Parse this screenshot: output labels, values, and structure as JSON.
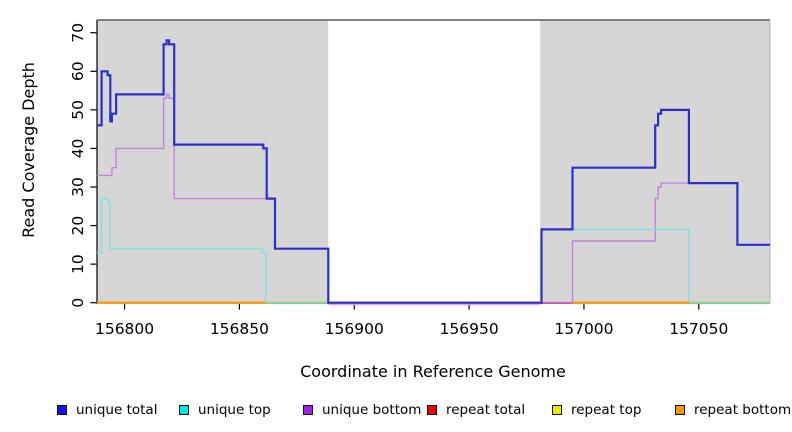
{
  "chart_data": {
    "type": "line",
    "subtype": "step-coverage",
    "title": "",
    "xlabel": "Coordinate in Reference Genome",
    "ylabel": "Read Coverage Depth",
    "xlim": [
      156788,
      157081
    ],
    "ylim": [
      0,
      73.3
    ],
    "grid": false,
    "x_ticks": [
      156800,
      156850,
      156900,
      156950,
      157000,
      157050
    ],
    "y_ticks": [
      0,
      10,
      20,
      30,
      40,
      50,
      60,
      70
    ],
    "plot_background": "#ffffff",
    "shaded_regions": [
      {
        "name": "shaded-region-left",
        "from": 156788,
        "to": 156888.7,
        "color": "#d6d6d6"
      },
      {
        "name": "shaded-region-right",
        "from": 156981,
        "to": 157081,
        "color": "#d6d6d6"
      }
    ],
    "series": [
      {
        "name": "repeat total",
        "color": "#ee0000",
        "width": 1.4,
        "steps": [
          [
            156788,
            0
          ]
        ]
      },
      {
        "name": "repeat top",
        "color": "#f2e500",
        "width": 1.4,
        "steps": [
          [
            156788,
            0
          ]
        ]
      },
      {
        "name": "repeat bottom",
        "color": "#ff9c00",
        "width": 2.0,
        "steps": [
          [
            156788,
            0
          ]
        ]
      },
      {
        "name": "unique bottom",
        "color": "#bd85de",
        "width": 1.4,
        "steps": [
          [
            156788,
            33
          ],
          [
            156794.5,
            35
          ],
          [
            156796.3,
            40
          ],
          [
            156817,
            53
          ],
          [
            156818.3,
            54
          ],
          [
            156819.4,
            53
          ],
          [
            156821.6,
            27
          ],
          [
            156865.5,
            14
          ],
          [
            156888.7,
            0
          ],
          [
            156995,
            16
          ],
          [
            157031,
            27
          ],
          [
            157032.3,
            30
          ],
          [
            157033.6,
            31
          ],
          [
            157066.8,
            15
          ]
        ]
      },
      {
        "name": "unique top",
        "color": "#7fe0e0",
        "width": 1.4,
        "steps": [
          [
            156788,
            13
          ],
          [
            156790,
            27
          ],
          [
            156792.6,
            26
          ],
          [
            156793.8,
            14
          ],
          [
            156859.8,
            13
          ],
          [
            156861.5,
            0
          ],
          [
            156981.5,
            19
          ],
          [
            157045.7,
            0
          ]
        ]
      },
      {
        "name": "unique total",
        "color": "#2d2dd0",
        "width": 2.2,
        "steps": [
          [
            156788,
            46
          ],
          [
            156790,
            60
          ],
          [
            156792.6,
            59
          ],
          [
            156793.8,
            47
          ],
          [
            156794.5,
            49
          ],
          [
            156796.3,
            54
          ],
          [
            156817,
            67
          ],
          [
            156818.3,
            68
          ],
          [
            156819.4,
            67
          ],
          [
            156821.6,
            41
          ],
          [
            156860.4,
            40
          ],
          [
            156861.9,
            27
          ],
          [
            156865.5,
            14
          ],
          [
            156888.7,
            0
          ],
          [
            156981.5,
            19
          ],
          [
            156995,
            35
          ],
          [
            157031,
            46
          ],
          [
            157032.3,
            49
          ],
          [
            157033.6,
            50
          ],
          [
            157045.7,
            31
          ],
          [
            157066.8,
            15
          ]
        ]
      }
    ],
    "baseline_segments": [
      {
        "name": "baseline-orange-left",
        "color": "#ff9c00",
        "from": 156788,
        "to": 156861.5,
        "dy": 0,
        "width": 2.2
      },
      {
        "name": "baseline-green-left",
        "color": "#7ccf84",
        "from": 156861.5,
        "to": 156888.7,
        "dy": 0.6,
        "width": 1.6
      },
      {
        "name": "baseline-plum-gap",
        "color": "#d4aae8",
        "from": 156888.7,
        "to": 156981,
        "dy": 1.8,
        "width": 1.4
      },
      {
        "name": "baseline-magenta-right",
        "color": "#c455c4",
        "from": 156981,
        "to": 156995,
        "dy": 0.6,
        "width": 1.4
      },
      {
        "name": "baseline-orange-right",
        "color": "#ff9c00",
        "from": 156995,
        "to": 157045.7,
        "dy": 0,
        "width": 2.2
      },
      {
        "name": "baseline-green-right",
        "color": "#7ccf84",
        "from": 157045.7,
        "to": 157081,
        "dy": 0.6,
        "width": 1.6
      }
    ],
    "legend_position": "bottom"
  },
  "legend": {
    "items": [
      {
        "label": "unique total",
        "swatch": "#1111ee"
      },
      {
        "label": "unique top",
        "swatch": "#00e6e6"
      },
      {
        "label": "unique bottom",
        "swatch": "#a020f0"
      },
      {
        "label": "repeat total",
        "swatch": "#ee0000"
      },
      {
        "label": "repeat top",
        "swatch": "#f2e500"
      },
      {
        "label": "repeat bottom",
        "swatch": "#f59b00"
      }
    ]
  }
}
